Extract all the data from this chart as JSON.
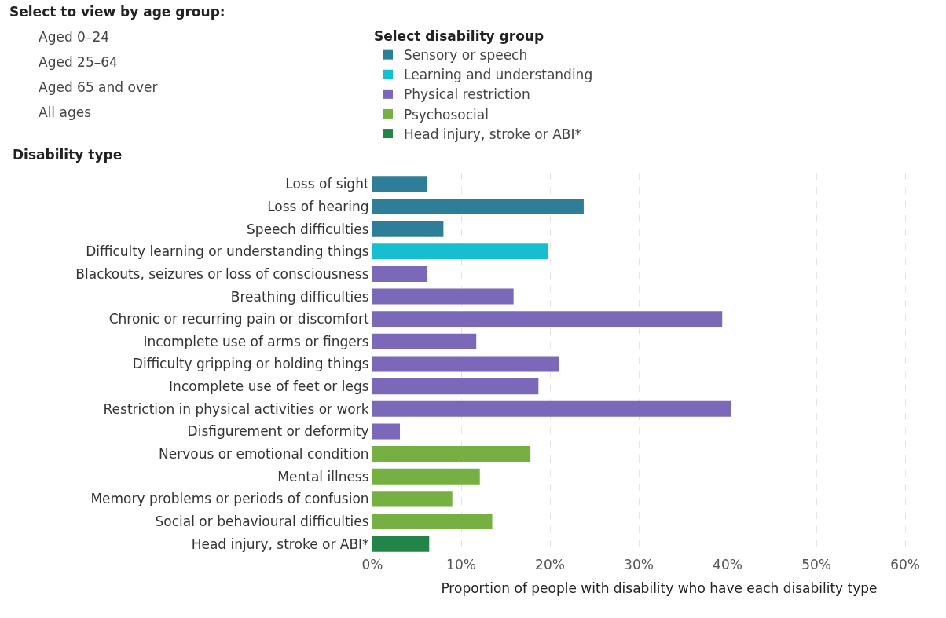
{
  "chart_data": {
    "type": "bar",
    "orientation": "horizontal",
    "ylabel": "Disability type",
    "xlabel": "Proportion of people with disability who have each disability type",
    "legend_title": "Select disability group",
    "annotations": [
      "Select to view by age group:",
      "Aged 0–24",
      "Aged 25–64",
      "Aged 65 and over",
      "All ages"
    ],
    "categories": [
      "Loss of sight",
      "Loss of hearing",
      "Speech difficulties",
      "Difficulty learning or understanding things",
      "Blackouts, seizures or loss of consciousness",
      "Breathing difficulties",
      "Chronic or recurring pain or discomfort",
      "Incomplete use of arms or fingers",
      "Difficulty gripping or holding things",
      "Incomplete use of feet or legs",
      "Restriction in physical activities or work",
      "Disfigurement or deformity",
      "Nervous or emotional condition",
      "Mental illness",
      "Memory problems or periods of confusion",
      "Social or behavioural difficulties",
      "Head injury, stroke or ABI*"
    ],
    "series": [
      {
        "name": "Sensory or speech",
        "color": "#2e7d99",
        "values": [
          6.2,
          23.8,
          8.0,
          null,
          null,
          null,
          null,
          null,
          null,
          null,
          null,
          null,
          null,
          null,
          null,
          null,
          null
        ]
      },
      {
        "name": "Learning and understanding",
        "color": "#17becf",
        "values": [
          null,
          null,
          null,
          19.8,
          null,
          null,
          null,
          null,
          null,
          null,
          null,
          null,
          null,
          null,
          null,
          null,
          null
        ]
      },
      {
        "name": "Physical restriction",
        "color": "#7b68b8",
        "values": [
          null,
          null,
          null,
          null,
          6.2,
          15.9,
          39.4,
          11.7,
          21.0,
          18.7,
          40.4,
          3.1,
          null,
          null,
          null,
          null,
          null
        ]
      },
      {
        "name": "Psychosocial",
        "color": "#76b043",
        "values": [
          null,
          null,
          null,
          null,
          null,
          null,
          null,
          null,
          null,
          null,
          null,
          null,
          17.8,
          12.1,
          9.0,
          13.5,
          null
        ]
      },
      {
        "name": "Head injury, stroke or ABI*",
        "color": "#23844a",
        "values": [
          null,
          null,
          null,
          null,
          null,
          null,
          null,
          null,
          null,
          null,
          null,
          null,
          null,
          null,
          null,
          null,
          6.4
        ]
      }
    ],
    "xlim": [
      0,
      64.6
    ],
    "xticks": [
      {
        "value": 0,
        "label": "0%"
      },
      {
        "value": 10,
        "label": "10%"
      },
      {
        "value": 20,
        "label": "20%"
      },
      {
        "value": 30,
        "label": "30%"
      },
      {
        "value": 40,
        "label": "40%"
      },
      {
        "value": 50,
        "label": "50%"
      },
      {
        "value": 60,
        "label": "60%"
      }
    ],
    "grid": "x",
    "legend": "top"
  }
}
